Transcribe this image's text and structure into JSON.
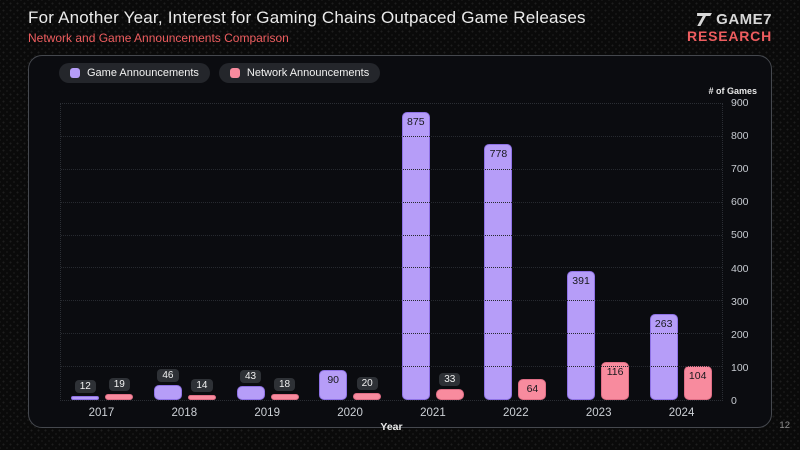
{
  "page": {
    "title": "For Another Year, Interest for Gaming Chains Outpaced Game Releases",
    "subtitle": "Network and Game Announcements Comparison",
    "page_number": "12"
  },
  "logo": {
    "brand": "GAME7",
    "division": "RESEARCH"
  },
  "colors": {
    "accent_red": "#ee5d5f",
    "game_purple": "#b69df8",
    "network_pink": "#f88b9e",
    "panel_bg": "#0b0c10",
    "badge_bg": "#2e3136"
  },
  "chart_data": {
    "type": "bar",
    "title": "Network and Game Announcements Comparison",
    "categories": [
      "2017",
      "2018",
      "2019",
      "2020",
      "2021",
      "2022",
      "2023",
      "2024"
    ],
    "series": [
      {
        "name": "Game Announcements",
        "color": "#b69df8",
        "border": "#8f72e6",
        "values": [
          12,
          46,
          43,
          90,
          875,
          778,
          391,
          263
        ]
      },
      {
        "name": "Network Announcements",
        "color": "#f88b9e",
        "border": "#e06e86",
        "values": [
          19,
          14,
          18,
          20,
          33,
          64,
          116,
          104
        ]
      }
    ],
    "xlabel": "Year",
    "ylabel": "# of Games",
    "ylim": [
      0,
      900
    ],
    "ytick_step": 100,
    "grid": "horizontal-dotted",
    "legend_position": "top-left",
    "value_labels": true,
    "inside_label_threshold": 60
  }
}
